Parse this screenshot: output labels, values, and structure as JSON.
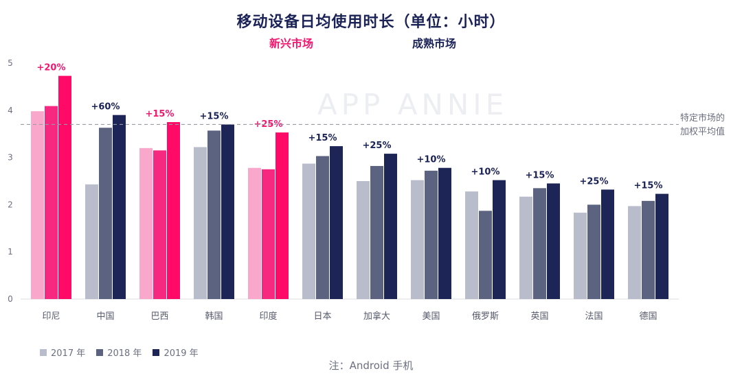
{
  "title": "移动设备日均使用时长（单位：小时）",
  "groups": {
    "emerging": "新兴市场",
    "mature": "成熟市场"
  },
  "watermark": "APP ANNIE",
  "reference_label": [
    "特定市场的",
    "加权平均值"
  ],
  "note": "注：Android 手机",
  "colors": {
    "emerging": [
      "#f9a8cb",
      "#f7287f",
      "#ff0a66"
    ],
    "mature": [
      "#b8bccb",
      "#5b6381",
      "#1d2557"
    ],
    "growth_emerging": "#f0186f",
    "growth_mature": "#1a2257",
    "reference": "#9a9aa4"
  },
  "chart_data": {
    "type": "bar",
    "title": "移动设备日均使用时长（单位：小时）",
    "xlabel": "",
    "ylabel": "",
    "ylim": [
      0,
      5
    ],
    "yticks": [
      0,
      1,
      2,
      3,
      4,
      5
    ],
    "grid": false,
    "legend_position": "bottom-left",
    "reference_value": 3.7,
    "categories": [
      "印尼",
      "中国",
      "巴西",
      "韩国",
      "印度",
      "日本",
      "加拿大",
      "美国",
      "俄罗斯",
      "英国",
      "法国",
      "德国"
    ],
    "market_type": [
      "emerging",
      "mature",
      "emerging",
      "mature",
      "emerging",
      "mature",
      "mature",
      "mature",
      "mature",
      "mature",
      "mature",
      "mature"
    ],
    "growth_labels": [
      "+20%",
      "+60%",
      "+15%",
      "+15%",
      "+25%",
      "+15%",
      "+25%",
      "+10%",
      "+10%",
      "+15%",
      "+25%",
      "+15%"
    ],
    "series": [
      {
        "name": "2017 年",
        "values": [
          3.98,
          2.43,
          3.2,
          3.22,
          2.78,
          2.87,
          2.5,
          2.52,
          2.28,
          2.17,
          1.83,
          1.97
        ]
      },
      {
        "name": "2018 年",
        "values": [
          4.09,
          3.63,
          3.15,
          3.57,
          2.75,
          3.03,
          2.82,
          2.72,
          1.87,
          2.35,
          2.0,
          2.08
        ]
      },
      {
        "name": "2019 年",
        "values": [
          4.73,
          3.9,
          3.75,
          3.7,
          3.53,
          3.24,
          3.08,
          2.78,
          2.52,
          2.45,
          2.32,
          2.23
        ]
      }
    ]
  }
}
